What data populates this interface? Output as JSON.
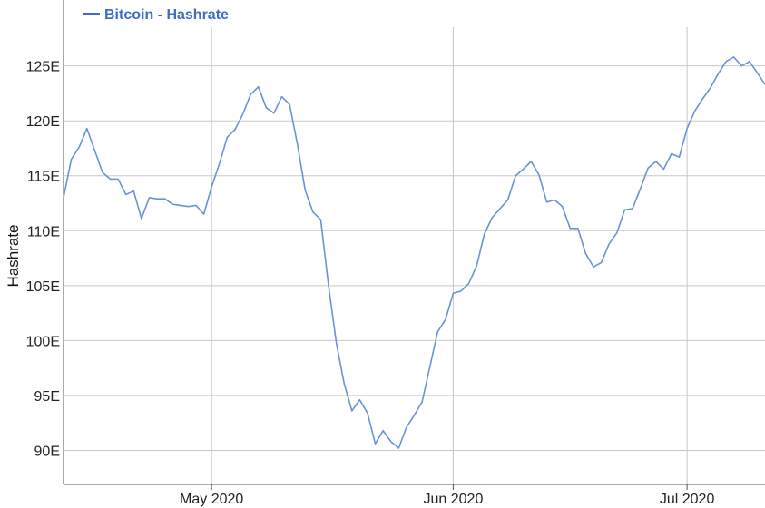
{
  "chart_data": {
    "type": "line",
    "title": "",
    "xlabel": "",
    "ylabel": "Hashrate",
    "x_ticks": [
      "May 2020",
      "Jun 2020",
      "Jul 2020"
    ],
    "y_ticks": [
      "90E",
      "95E",
      "100E",
      "105E",
      "110E",
      "115E",
      "120E",
      "125E"
    ],
    "y_tick_values": [
      90,
      95,
      100,
      105,
      110,
      115,
      120,
      125
    ],
    "ylim": [
      86.9,
      131
    ],
    "grid": true,
    "legend": "top-left",
    "colors": {
      "series": "#6a93d6",
      "legend_text": "#3f6cc4",
      "grid": "#c8c8c8",
      "axis": "#555555"
    },
    "series": [
      {
        "name": "Bitcoin - Hashrate",
        "values": [
          113.0,
          116.5,
          117.6,
          119.3,
          117.3,
          115.3,
          114.7,
          114.7,
          113.3,
          113.6,
          111.1,
          113.0,
          112.9,
          112.9,
          112.4,
          112.3,
          112.2,
          112.3,
          111.5,
          114.0,
          116.1,
          118.5,
          119.2,
          120.6,
          122.4,
          123.1,
          121.2,
          120.7,
          122.2,
          121.5,
          117.9,
          113.7,
          111.7,
          111.0,
          105.0,
          99.8,
          96.1,
          93.6,
          94.6,
          93.4,
          90.6,
          91.8,
          90.8,
          90.2,
          92.1,
          93.2,
          94.4,
          97.6,
          100.8,
          101.9,
          104.3,
          104.5,
          105.2,
          106.8,
          109.7,
          111.2,
          112.0,
          112.8,
          115.0,
          115.6,
          116.3,
          115.1,
          112.6,
          112.8,
          112.2,
          110.2,
          110.2,
          107.9,
          106.7,
          107.1,
          108.8,
          109.8,
          111.9,
          112.0,
          113.8,
          115.7,
          116.3,
          115.6,
          117.0,
          116.7,
          119.3,
          120.9,
          122.0,
          123.0,
          124.3,
          125.4,
          125.8,
          125.0,
          125.4,
          124.4,
          123.3
        ]
      }
    ],
    "date_range": [
      "2020-04-12",
      "2020-07-11"
    ]
  }
}
